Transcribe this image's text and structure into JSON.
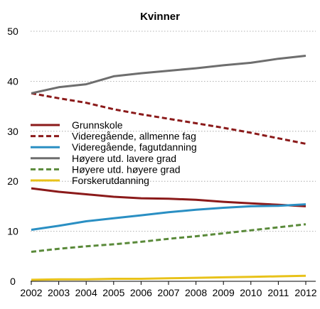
{
  "chart_data": {
    "type": "line",
    "title": "Kvinner",
    "xlabel": "",
    "ylabel": "",
    "x": [
      "2002",
      "2003",
      "2004",
      "2005",
      "2006",
      "2007",
      "2008",
      "2009",
      "2010",
      "2011",
      "2012"
    ],
    "ylim": [
      0,
      50
    ],
    "yticks": [
      0,
      10,
      20,
      30,
      40,
      50
    ],
    "grid": true,
    "legend_position": "left",
    "series": [
      {
        "name": "Grunnskole",
        "color": "#8b1a1a",
        "dash": "solid",
        "values": [
          18.6,
          17.9,
          17.4,
          16.9,
          16.6,
          16.5,
          16.3,
          15.9,
          15.6,
          15.3,
          15.0
        ]
      },
      {
        "name": "Videregående, allmenne fag",
        "color": "#8b1a1a",
        "dash": "dashed",
        "values": [
          37.6,
          36.6,
          35.7,
          34.4,
          33.4,
          32.5,
          31.6,
          30.7,
          29.7,
          28.6,
          27.5
        ]
      },
      {
        "name": "Videregående, fagutdanning",
        "color": "#2a8fc3",
        "dash": "solid",
        "values": [
          10.3,
          11.1,
          12.0,
          12.6,
          13.2,
          13.8,
          14.3,
          14.7,
          15.0,
          15.1,
          15.4
        ]
      },
      {
        "name": "Høyere utd. lavere grad",
        "color": "#6e6e6e",
        "dash": "solid",
        "values": [
          37.6,
          38.8,
          39.4,
          41.0,
          41.6,
          42.1,
          42.6,
          43.2,
          43.7,
          44.5,
          45.1
        ]
      },
      {
        "name": "Høyere utd. høyere grad",
        "color": "#5a8a3a",
        "dash": "dashed",
        "values": [
          5.9,
          6.5,
          7.0,
          7.4,
          7.9,
          8.5,
          9.0,
          9.6,
          10.2,
          10.8,
          11.4
        ]
      },
      {
        "name": "Forskerutdanning",
        "color": "#e8c21a",
        "dash": "solid",
        "values": [
          0.3,
          0.4,
          0.4,
          0.5,
          0.5,
          0.6,
          0.7,
          0.8,
          0.9,
          1.0,
          1.1
        ]
      }
    ]
  }
}
